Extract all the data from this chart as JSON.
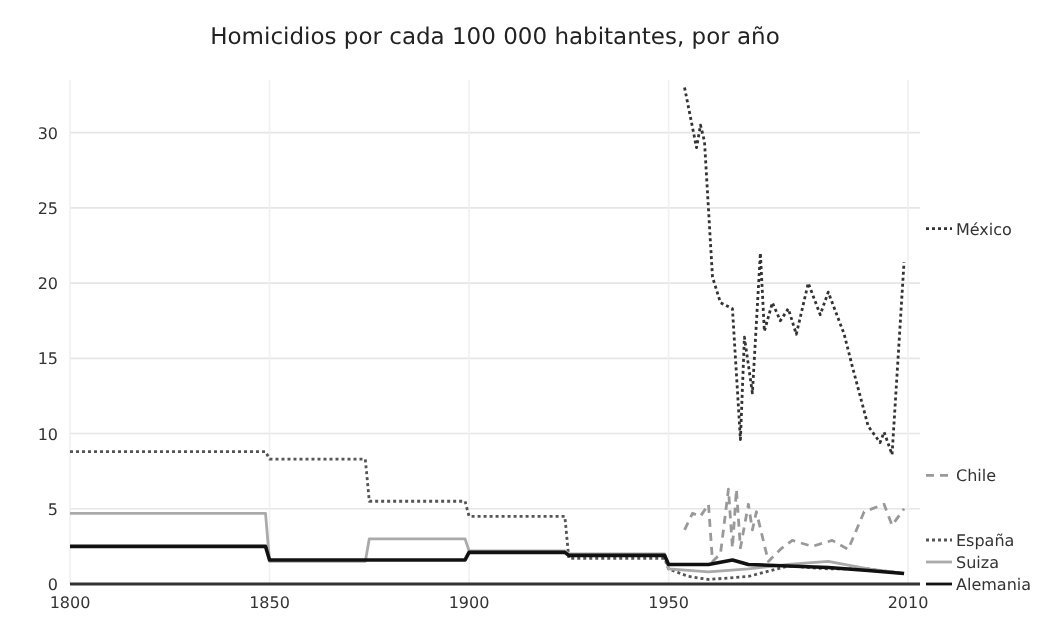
{
  "chart_data": {
    "type": "line",
    "title": "Homicidios por cada 100 000 habitantes, por año",
    "xlim": [
      1800,
      2013
    ],
    "xticks": [
      1800,
      1850,
      1900,
      1950,
      2010
    ],
    "ylim": [
      0,
      33.5
    ],
    "yticks": [
      0,
      5,
      10,
      15,
      20,
      25,
      30
    ],
    "grid": true,
    "legend": "right",
    "series": [
      {
        "name": "México",
        "color": "#333333",
        "line_style": "dotted",
        "x": [
          1954,
          1957,
          1958,
          1959,
          1961,
          1963,
          1966,
          1968,
          1969,
          1971,
          1973,
          1974,
          1976,
          1978,
          1980,
          1982,
          1985,
          1988,
          1990,
          1994,
          1996,
          2000,
          2003,
          2004,
          2006,
          2009
        ],
        "values": [
          33,
          29,
          30.5,
          29.4,
          20.4,
          18.7,
          18.3,
          9.6,
          16.4,
          12.7,
          22,
          16.8,
          18.7,
          17.5,
          18.3,
          16.6,
          20,
          17.9,
          19.4,
          16.6,
          14.5,
          10.5,
          9.4,
          10.1,
          8.6,
          21.4
        ]
      },
      {
        "name": "Chile",
        "color": "#999999",
        "line_style": "dashed",
        "x": [
          1954,
          1956,
          1958,
          1960,
          1961,
          1963,
          1965,
          1966,
          1967,
          1968,
          1970,
          1971,
          1972,
          1975,
          1978,
          1981,
          1986,
          1991,
          1995,
          1999,
          2004,
          2006,
          2009
        ],
        "values": [
          3.6,
          4.7,
          4.5,
          5.3,
          1.5,
          2,
          6.3,
          2.4,
          6.3,
          2.4,
          5.3,
          3.6,
          4.8,
          1.5,
          2.3,
          2.9,
          2.5,
          2.9,
          2.3,
          4.8,
          5.3,
          3.9,
          5
        ]
      },
      {
        "name": "España",
        "color": "#555555",
        "line_style": "dotted",
        "x": [
          1800,
          1849,
          1850,
          1874,
          1875,
          1899,
          1900,
          1924,
          1925,
          1949,
          1950,
          1955,
          1960,
          1970,
          1980,
          1990,
          2000,
          2009
        ],
        "values": [
          8.8,
          8.8,
          8.3,
          8.3,
          5.5,
          5.5,
          4.5,
          4.5,
          1.7,
          1.7,
          1,
          0.5,
          0.3,
          0.5,
          1.2,
          1,
          1,
          0.7
        ]
      },
      {
        "name": "Suiza",
        "color": "#aaaaaa",
        "line_style": "solid",
        "x": [
          1800,
          1849,
          1850,
          1874,
          1875,
          1899,
          1900,
          1924,
          1925,
          1949,
          1950,
          1960,
          1970,
          1980,
          1990,
          2000,
          2009
        ],
        "values": [
          4.7,
          4.7,
          1.5,
          1.5,
          3,
          3,
          2.2,
          2.2,
          2,
          2,
          1,
          0.8,
          1,
          1.3,
          1.5,
          1,
          0.7
        ]
      },
      {
        "name": "Alemania",
        "color": "#111111",
        "line_style": "solid",
        "x": [
          1800,
          1849,
          1850,
          1899,
          1900,
          1924,
          1925,
          1949,
          1950,
          1960,
          1966,
          1970,
          1980,
          1990,
          2000,
          2009
        ],
        "values": [
          2.5,
          2.5,
          1.6,
          1.6,
          2.1,
          2.1,
          1.9,
          1.9,
          1.3,
          1.3,
          1.6,
          1.3,
          1.2,
          1.1,
          0.9,
          0.7
        ]
      }
    ]
  }
}
